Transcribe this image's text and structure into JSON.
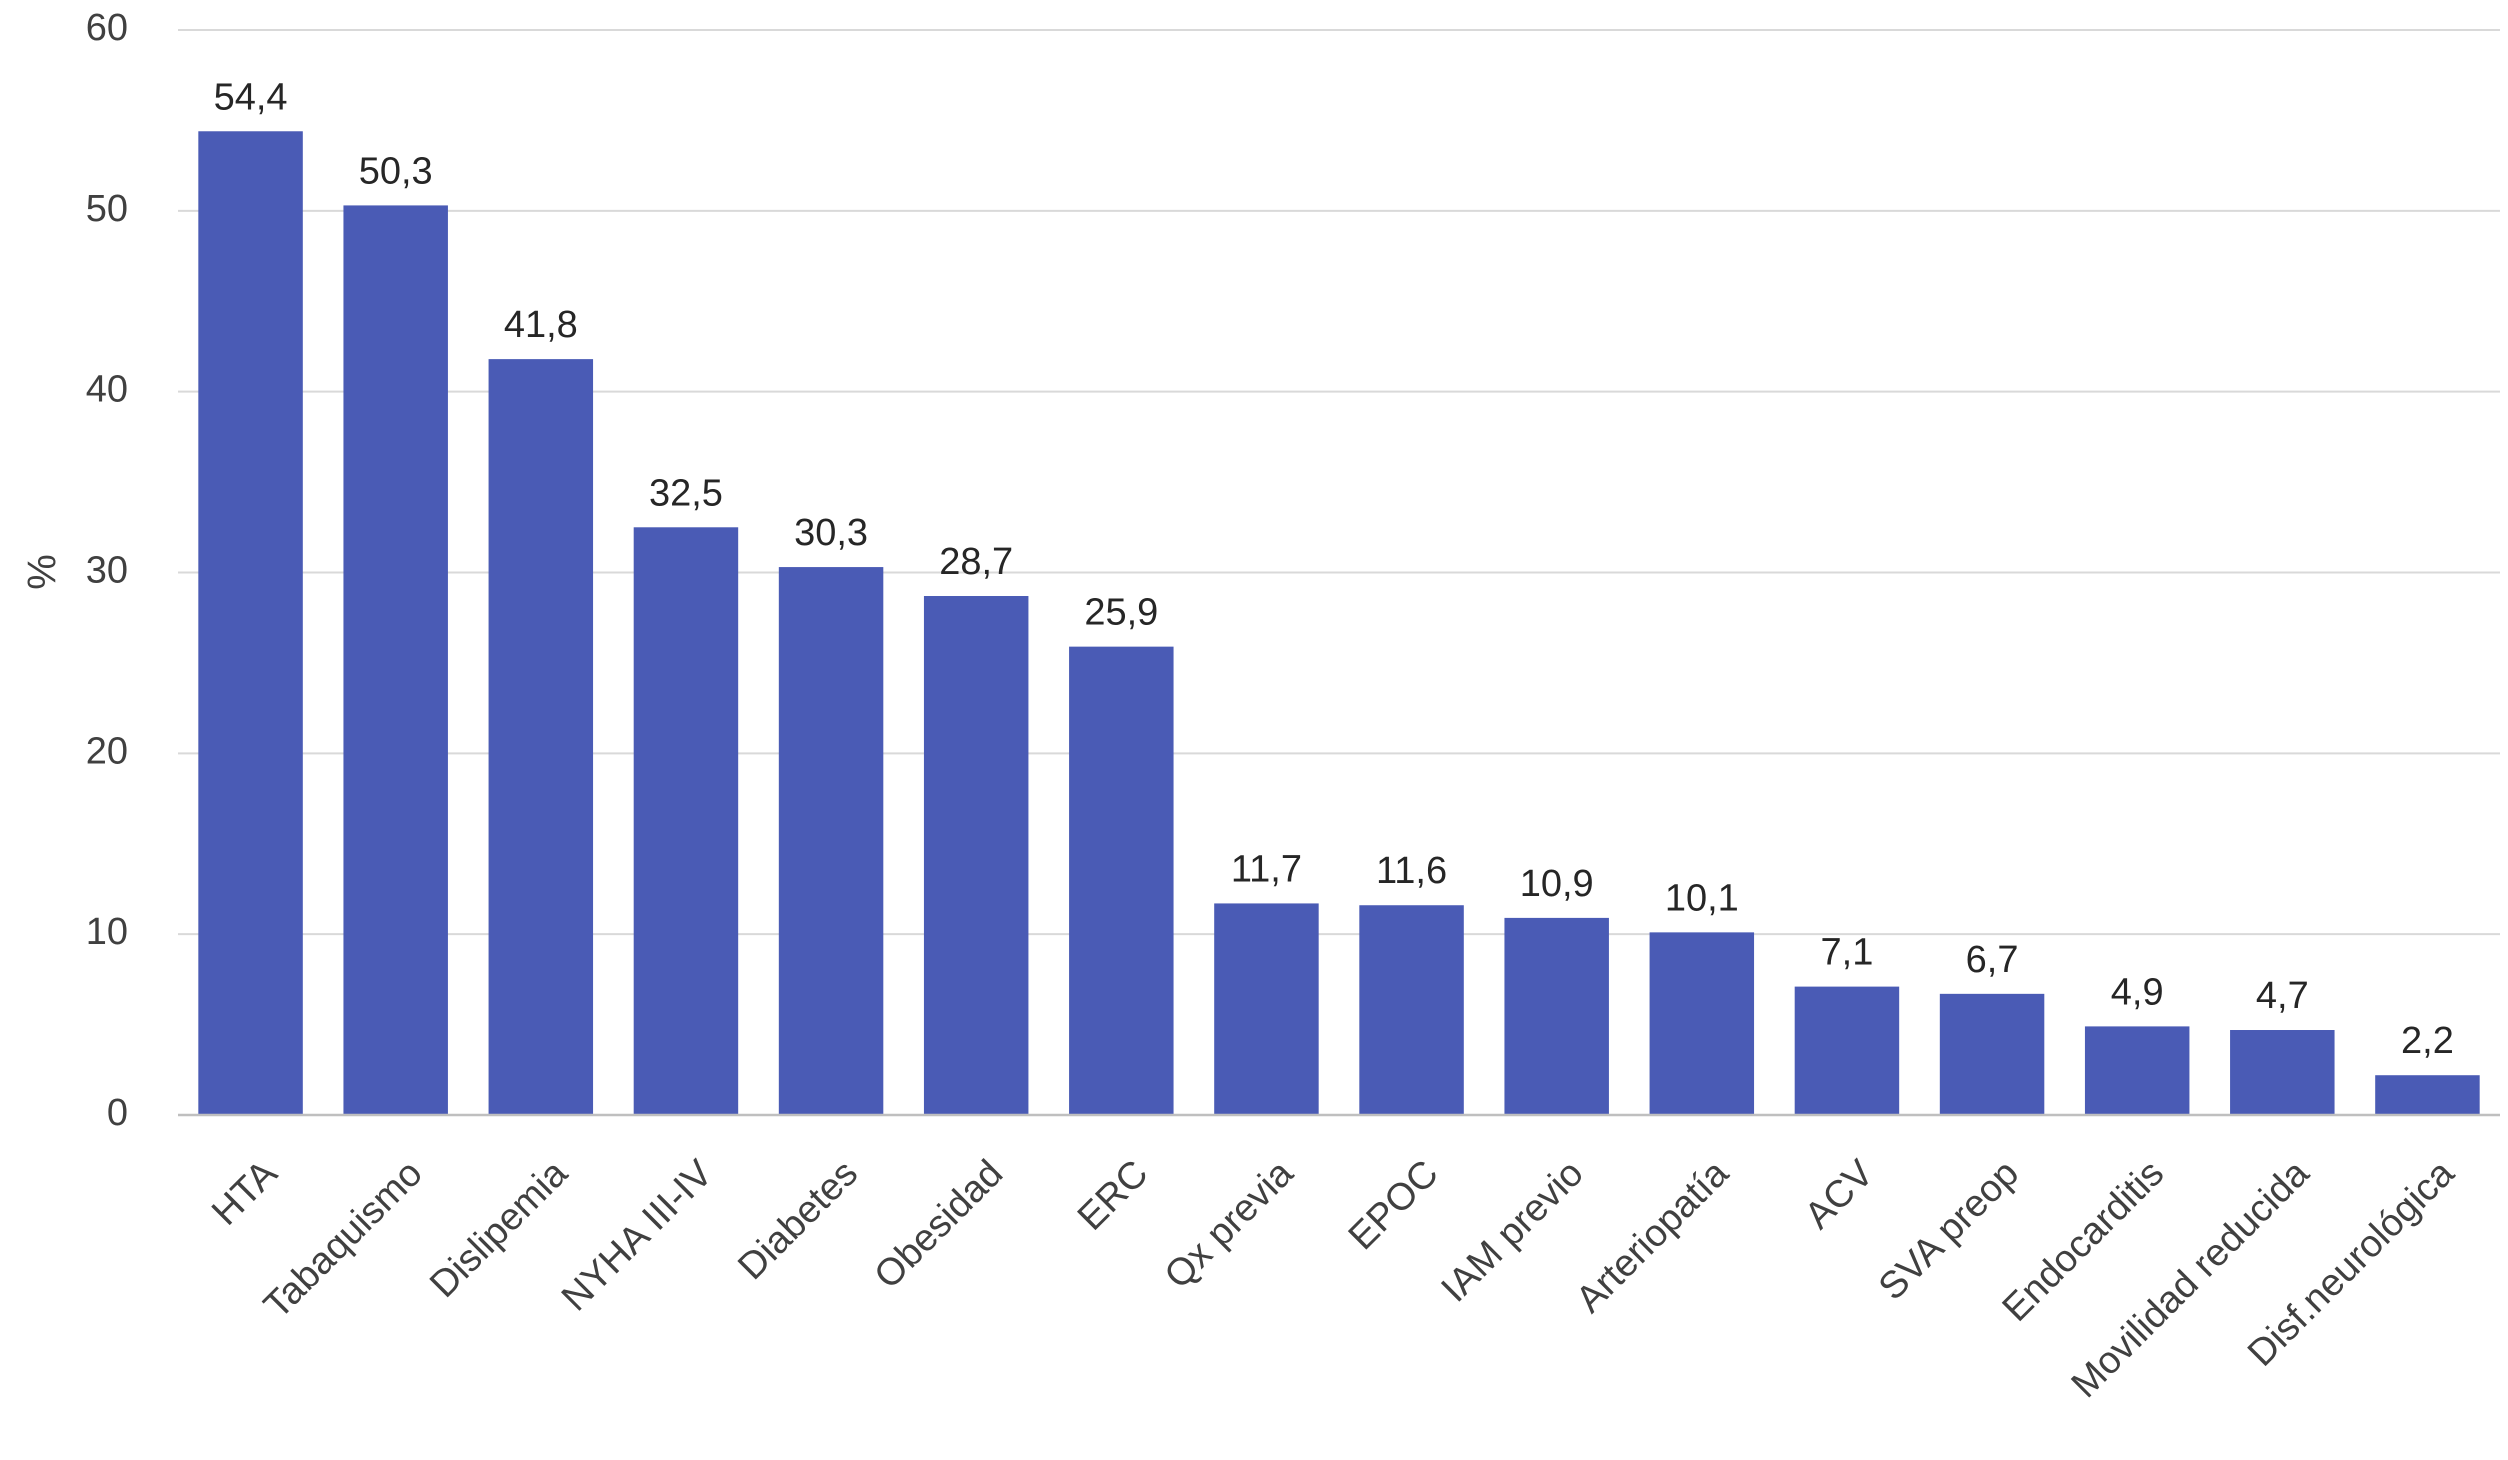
{
  "chart_data": {
    "type": "bar",
    "title": "",
    "xlabel": "",
    "ylabel": "%",
    "ylim": [
      0,
      60
    ],
    "yticks": [
      0,
      10,
      20,
      30,
      40,
      50,
      60
    ],
    "grid": true,
    "categories": [
      "HTA",
      "Tabaquismo",
      "Dislipemia",
      "NYHA III-IV",
      "Diabetes",
      "Obesidad",
      "ERC",
      "Qx previa",
      "EPOC",
      "IAM previo",
      "Arteriopatía",
      "ACV",
      "SVA preop",
      "Endocarditis",
      "Movilidad reducida",
      "Disf.neurológica"
    ],
    "values": [
      54.4,
      50.3,
      41.8,
      32.5,
      30.3,
      28.7,
      25.9,
      11.7,
      11.6,
      10.9,
      10.1,
      7.1,
      6.7,
      4.9,
      4.7,
      2.2
    ],
    "data_labels": [
      "54,4",
      "50,3",
      "41,8",
      "32,5",
      "30,3",
      "28,7",
      "25,9",
      "11,7",
      "11,6",
      "10,9",
      "10,1",
      "7,1",
      "6,7",
      "4,9",
      "4,7",
      "2,2"
    ],
    "bar_color": "#4a5bb5"
  }
}
